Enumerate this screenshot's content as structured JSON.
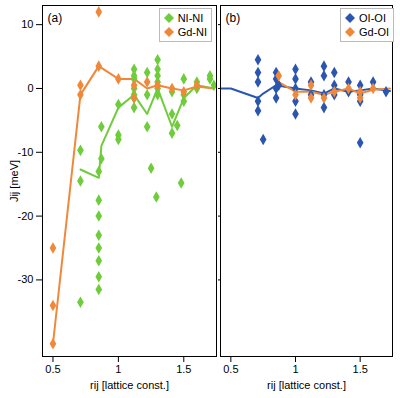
{
  "chart_data": [
    {
      "type": "scatter",
      "title": "(a)",
      "x_label": "rij [lattice const.]",
      "y_label": "Jij [meV]",
      "xlim": [
        0.42,
        1.75
      ],
      "xticks": [
        0.5,
        1,
        1.5
      ],
      "ylim": [
        -42,
        13
      ],
      "yticks": [
        -30,
        -20,
        -10,
        0,
        10
      ],
      "legend": "upper right",
      "grid": false,
      "tick_labels": true,
      "series": [
        {
          "name": "NI-NI",
          "color": "#6fcc3a",
          "marker": "diamond",
          "x": [
            0.71,
            0.71,
            0.71,
            0.85,
            0.85,
            0.85,
            0.85,
            0.85,
            0.85,
            0.85,
            0.85,
            0.87,
            0.87,
            1.0,
            1.0,
            1.0,
            1.12,
            1.12,
            1.12,
            1.12,
            1.12,
            1.12,
            1.12,
            1.22,
            1.22,
            1.22,
            1.25,
            1.29,
            1.3,
            1.3,
            1.3,
            1.3,
            1.3,
            1.3,
            1.41,
            1.41,
            1.41,
            1.45,
            1.48,
            1.5,
            1.5,
            1.5,
            1.6,
            1.6,
            1.7,
            1.7,
            1.73
          ],
          "y": [
            -33.5,
            -14.5,
            -9.7,
            -13,
            -17.5,
            -20,
            -23,
            -25,
            -27,
            -29.5,
            -31.5,
            -11,
            -6,
            -7.3,
            -2.5,
            -8,
            -1.5,
            0,
            1.5,
            2,
            3,
            -1,
            -3,
            -6,
            -1,
            2.5,
            -12.5,
            -17,
            4.5,
            3,
            2,
            1,
            0,
            -1,
            -4,
            -7,
            -0.5,
            -5.8,
            -14.8,
            -2,
            -1,
            1.5,
            1,
            0,
            2,
            1.5,
            0.5
          ],
          "line": {
            "x": [
              0.71,
              0.85,
              0.87,
              1.0,
              1.12,
              1.22,
              1.3,
              1.41,
              1.5,
              1.6,
              1.73
            ],
            "y": [
              -12.7,
              -14,
              -9,
              -3,
              -1,
              -4,
              0,
              -6,
              -1.5,
              0.5,
              0
            ]
          }
        },
        {
          "name": "Gd-NI",
          "color": "#f0883a",
          "marker": "diamond",
          "x": [
            0.5,
            0.5,
            0.5,
            0.71,
            0.71,
            0.85,
            0.85,
            1.0,
            1.12,
            1.12,
            1.22,
            1.3,
            1.41,
            1.5,
            1.6
          ],
          "y": [
            -25,
            -34,
            -40,
            0.5,
            -1,
            12,
            3.5,
            1.5,
            0.5,
            -1.5,
            1,
            0.5,
            0,
            -0.5,
            0.5
          ],
          "line": {
            "x": [
              0.5,
              0.71,
              0.85,
              1.0,
              1.12,
              1.22,
              1.3,
              1.41,
              1.5,
              1.6,
              1.73
            ],
            "y": [
              -40,
              -1,
              3.5,
              1.5,
              1.5,
              0,
              0.5,
              0,
              -0.3,
              0.3,
              0
            ]
          }
        }
      ]
    },
    {
      "type": "scatter",
      "title": "(b)",
      "x_label": "rij [lattice const.]",
      "xlim": [
        0.42,
        1.75
      ],
      "xticks": [
        0.5,
        1,
        1.5
      ],
      "ylim": [
        -42,
        13
      ],
      "yticks": [
        -30,
        -20,
        -10,
        0,
        10
      ],
      "legend": "upper right",
      "grid": false,
      "tick_labels": "x",
      "series": [
        {
          "name": "OI-OI",
          "color": "#2a56b0",
          "marker": "diamond",
          "x": [
            0.71,
            0.71,
            0.71,
            0.71,
            0.71,
            0.75,
            0.85,
            0.85,
            0.85,
            0.85,
            0.87,
            1.0,
            1.0,
            1.0,
            1.0,
            1.0,
            1.12,
            1.12,
            1.22,
            1.22,
            1.22,
            1.22,
            1.3,
            1.3,
            1.3,
            1.41,
            1.41,
            1.5,
            1.5,
            1.5,
            1.5,
            1.6,
            1.7
          ],
          "y": [
            4.5,
            2.5,
            1,
            -2,
            -3.5,
            -8,
            2.5,
            1.5,
            0,
            -1.5,
            0.5,
            3,
            1.5,
            0,
            -2,
            -4,
            1,
            -1,
            2,
            -1,
            -3,
            3.5,
            2.5,
            0.5,
            -1,
            1,
            -0.5,
            0.5,
            -1,
            -2,
            -8.5,
            1,
            -0.5
          ],
          "line": {
            "x": [
              0.42,
              0.5,
              0.71,
              0.75,
              0.85,
              1.0,
              1.12,
              1.22,
              1.3,
              1.41,
              1.5,
              1.6,
              1.73
            ],
            "y": [
              0,
              0,
              -1.5,
              -0.8,
              0.5,
              0,
              -0.3,
              -0.8,
              0,
              -0.5,
              -0.3,
              0,
              -0.4
            ]
          }
        },
        {
          "name": "Gd-OI",
          "color": "#f0883a",
          "marker": "diamond",
          "x": [
            0.87,
            1.0,
            1.12,
            1.12,
            1.22,
            1.3,
            1.41,
            1.5,
            1.5,
            1.6
          ],
          "y": [
            2,
            -1,
            0.5,
            -1.5,
            -1.5,
            -0.5,
            0,
            -0.5,
            -1.5,
            0
          ],
          "line": {
            "x": [
              0.87,
              1.0,
              1.12,
              1.22,
              1.3,
              1.41,
              1.5,
              1.6,
              1.73
            ],
            "y": [
              1,
              -0.5,
              -0.5,
              -1,
              -0.5,
              0,
              -0.8,
              -0.2,
              0
            ]
          }
        }
      ]
    }
  ]
}
